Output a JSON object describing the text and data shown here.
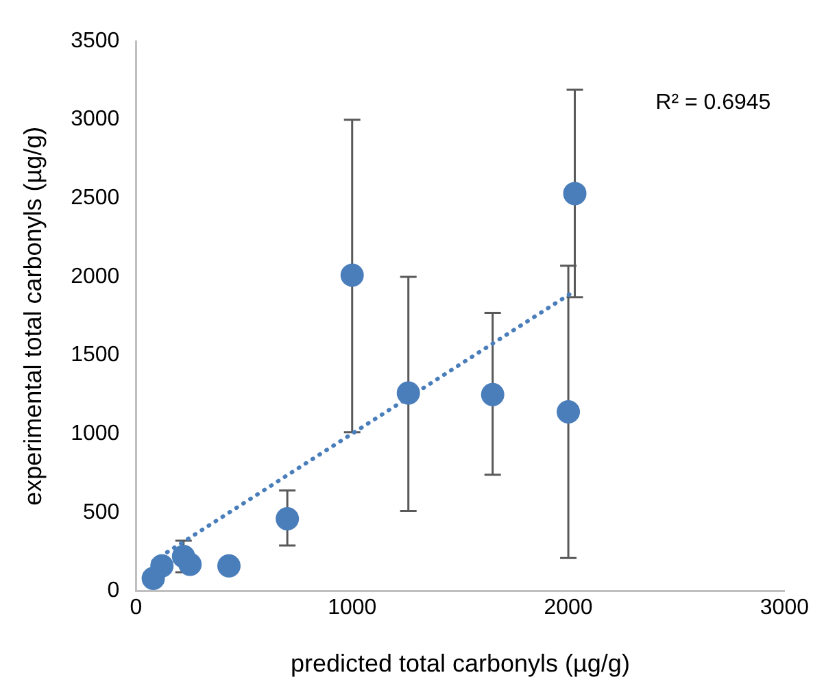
{
  "chart_data": {
    "type": "scatter",
    "xlabel": "predicted total carbonyls (µg/g)",
    "ylabel": "experimental total carbonyls (µg/g)",
    "xlim": [
      0,
      3000
    ],
    "xticks": [
      0,
      1000,
      2000,
      3000
    ],
    "ylim": [
      0,
      3500
    ],
    "yticks": [
      0,
      500,
      1000,
      1500,
      2000,
      2500,
      3000,
      3500
    ],
    "grid": false,
    "legend": false,
    "annotations": [
      "R² = 0.6945"
    ],
    "series": [
      {
        "color": "#4a7ebb",
        "marker": "circle",
        "x": [
          80,
          120,
          220,
          250,
          430,
          700,
          1000,
          1260,
          1650,
          2000,
          2030
        ],
        "values": [
          80,
          160,
          220,
          170,
          160,
          460,
          2010,
          1260,
          1250,
          1140,
          2530
        ],
        "errors": [
          null,
          null,
          [
            120,
            320
          ],
          null,
          null,
          [
            290,
            640
          ],
          [
            1010,
            3000
          ],
          [
            510,
            2000
          ],
          [
            740,
            1770
          ],
          [
            210,
            2070
          ],
          [
            1870,
            3190
          ]
        ]
      },
      {
        "type": "line",
        "color": "#4a7ebb",
        "marker": "none",
        "line_style": "dotted",
        "x": [
          80,
          2030
        ],
        "values": [
          190,
          1910
        ]
      }
    ]
  }
}
